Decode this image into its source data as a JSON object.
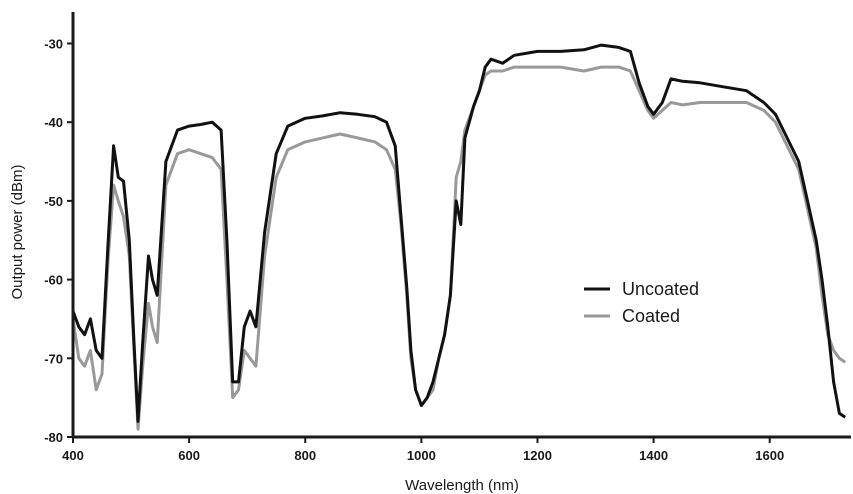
{
  "chart_data": {
    "type": "line",
    "xlabel": "Wavelength (nm)",
    "ylabel": "Output power (dBm)",
    "xlim": [
      400,
      1740
    ],
    "ylim": [
      -80,
      -26
    ],
    "xticks": [
      400,
      600,
      800,
      1000,
      1200,
      1400,
      1600
    ],
    "yticks": [
      -80,
      -70,
      -60,
      -50,
      -40,
      -30
    ],
    "xtick_labels": [
      "400",
      "600",
      "800",
      "1000",
      "1200",
      "1400",
      "1600"
    ],
    "ytick_labels": [
      "-80",
      "-70",
      "-60",
      "-50",
      "-40",
      "-30"
    ],
    "grid": false,
    "legend_position": "center-right",
    "series": [
      {
        "name": "Uncoated",
        "color": "#111111",
        "points": [
          [
            400,
            -64
          ],
          [
            410,
            -66
          ],
          [
            420,
            -67
          ],
          [
            430,
            -65
          ],
          [
            440,
            -69
          ],
          [
            450,
            -70
          ],
          [
            460,
            -56
          ],
          [
            470,
            -43
          ],
          [
            478,
            -47
          ],
          [
            487,
            -47.5
          ],
          [
            497,
            -55
          ],
          [
            505,
            -68
          ],
          [
            512,
            -78
          ],
          [
            520,
            -68
          ],
          [
            530,
            -57
          ],
          [
            537,
            -60
          ],
          [
            545,
            -62
          ],
          [
            560,
            -45
          ],
          [
            580,
            -41
          ],
          [
            600,
            -40.5
          ],
          [
            620,
            -40.3
          ],
          [
            640,
            -40
          ],
          [
            655,
            -41
          ],
          [
            665,
            -55
          ],
          [
            675,
            -73
          ],
          [
            685,
            -73
          ],
          [
            695,
            -66
          ],
          [
            705,
            -64
          ],
          [
            715,
            -66
          ],
          [
            730,
            -54
          ],
          [
            750,
            -44
          ],
          [
            770,
            -40.5
          ],
          [
            800,
            -39.5
          ],
          [
            830,
            -39.2
          ],
          [
            860,
            -38.8
          ],
          [
            890,
            -39
          ],
          [
            920,
            -39.3
          ],
          [
            940,
            -40
          ],
          [
            955,
            -43
          ],
          [
            965,
            -52
          ],
          [
            975,
            -61
          ],
          [
            982,
            -69
          ],
          [
            990,
            -74
          ],
          [
            1000,
            -76
          ],
          [
            1010,
            -75
          ],
          [
            1020,
            -73
          ],
          [
            1030,
            -70
          ],
          [
            1040,
            -67
          ],
          [
            1050,
            -62
          ],
          [
            1060,
            -50
          ],
          [
            1068,
            -53
          ],
          [
            1075,
            -42
          ],
          [
            1090,
            -38
          ],
          [
            1100,
            -36
          ],
          [
            1110,
            -33
          ],
          [
            1120,
            -32
          ],
          [
            1140,
            -32.5
          ],
          [
            1160,
            -31.5
          ],
          [
            1200,
            -31
          ],
          [
            1240,
            -31
          ],
          [
            1280,
            -30.8
          ],
          [
            1310,
            -30.2
          ],
          [
            1340,
            -30.5
          ],
          [
            1360,
            -31
          ],
          [
            1375,
            -35
          ],
          [
            1390,
            -38
          ],
          [
            1400,
            -39
          ],
          [
            1415,
            -37.5
          ],
          [
            1430,
            -34.5
          ],
          [
            1450,
            -34.8
          ],
          [
            1480,
            -35
          ],
          [
            1520,
            -35.5
          ],
          [
            1560,
            -36
          ],
          [
            1590,
            -37.5
          ],
          [
            1610,
            -39
          ],
          [
            1630,
            -42
          ],
          [
            1650,
            -45
          ],
          [
            1665,
            -50
          ],
          [
            1680,
            -55
          ],
          [
            1690,
            -60
          ],
          [
            1700,
            -66
          ],
          [
            1710,
            -73
          ],
          [
            1720,
            -77
          ],
          [
            1730,
            -77.5
          ]
        ]
      },
      {
        "name": "Coated",
        "color": "#999999",
        "points": [
          [
            400,
            -65
          ],
          [
            410,
            -70
          ],
          [
            420,
            -71
          ],
          [
            430,
            -69
          ],
          [
            440,
            -74
          ],
          [
            450,
            -72
          ],
          [
            460,
            -58
          ],
          [
            470,
            -48
          ],
          [
            478,
            -50
          ],
          [
            487,
            -52
          ],
          [
            497,
            -57
          ],
          [
            505,
            -69
          ],
          [
            512,
            -79
          ],
          [
            520,
            -71
          ],
          [
            530,
            -63
          ],
          [
            537,
            -66
          ],
          [
            545,
            -68
          ],
          [
            560,
            -48
          ],
          [
            580,
            -44
          ],
          [
            600,
            -43.5
          ],
          [
            620,
            -44
          ],
          [
            640,
            -44.5
          ],
          [
            655,
            -46
          ],
          [
            665,
            -60
          ],
          [
            675,
            -75
          ],
          [
            685,
            -74
          ],
          [
            695,
            -69
          ],
          [
            705,
            -70
          ],
          [
            715,
            -71
          ],
          [
            730,
            -57
          ],
          [
            750,
            -47
          ],
          [
            770,
            -43.5
          ],
          [
            800,
            -42.5
          ],
          [
            830,
            -42
          ],
          [
            860,
            -41.5
          ],
          [
            890,
            -42
          ],
          [
            920,
            -42.5
          ],
          [
            940,
            -43.5
          ],
          [
            955,
            -46
          ],
          [
            965,
            -53
          ],
          [
            975,
            -62
          ],
          [
            982,
            -70
          ],
          [
            990,
            -74
          ],
          [
            1000,
            -76
          ],
          [
            1010,
            -75
          ],
          [
            1020,
            -74
          ],
          [
            1030,
            -70
          ],
          [
            1040,
            -67
          ],
          [
            1050,
            -62
          ],
          [
            1060,
            -47
          ],
          [
            1068,
            -45
          ],
          [
            1075,
            -41
          ],
          [
            1090,
            -38
          ],
          [
            1100,
            -36
          ],
          [
            1110,
            -34
          ],
          [
            1120,
            -33.5
          ],
          [
            1140,
            -33.5
          ],
          [
            1160,
            -33
          ],
          [
            1200,
            -33
          ],
          [
            1240,
            -33
          ],
          [
            1280,
            -33.5
          ],
          [
            1310,
            -33
          ],
          [
            1340,
            -33
          ],
          [
            1360,
            -33.5
          ],
          [
            1375,
            -36
          ],
          [
            1390,
            -38.5
          ],
          [
            1400,
            -39.5
          ],
          [
            1415,
            -38.5
          ],
          [
            1430,
            -37.5
          ],
          [
            1450,
            -37.8
          ],
          [
            1480,
            -37.5
          ],
          [
            1520,
            -37.5
          ],
          [
            1560,
            -37.5
          ],
          [
            1590,
            -38.5
          ],
          [
            1610,
            -40
          ],
          [
            1630,
            -43
          ],
          [
            1650,
            -46
          ],
          [
            1665,
            -51
          ],
          [
            1680,
            -56
          ],
          [
            1690,
            -62
          ],
          [
            1700,
            -67
          ],
          [
            1710,
            -69
          ],
          [
            1720,
            -70
          ],
          [
            1730,
            -70.5
          ]
        ]
      }
    ]
  }
}
